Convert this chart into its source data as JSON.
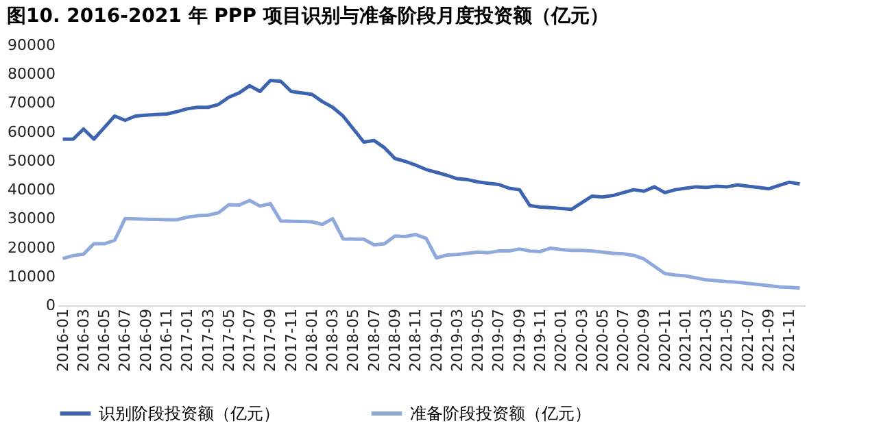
{
  "chart_data": {
    "type": "line",
    "title": "图10. 2016-2021 年 PPP 项目识别与准备阶段月度投资额（亿元）",
    "categories": [
      "2016-01",
      null,
      "2016-03",
      null,
      "2016-05",
      null,
      "2016-07",
      null,
      "2016-09",
      null,
      "2016-11",
      null,
      "2017-01",
      null,
      "2017-03",
      null,
      "2017-05",
      null,
      "2017-07",
      null,
      "2017-09",
      null,
      "2017-11",
      null,
      "2018-01",
      null,
      "2018-03",
      null,
      "2018-05",
      null,
      "2018-07",
      null,
      "2018-09",
      null,
      "2018-11",
      null,
      "2019-01",
      null,
      "2019-03",
      null,
      "2019-05",
      null,
      "2019-07",
      null,
      "2019-09",
      null,
      "2019-11",
      null,
      "2020-01",
      null,
      "2020-03",
      null,
      "2020-05",
      null,
      "2020-07",
      null,
      "2020-09",
      null,
      "2020-11",
      null,
      "2021-01",
      null,
      "2021-03",
      null,
      "2021-05",
      null,
      "2021-07",
      null,
      "2021-09",
      null,
      "2021-11",
      null
    ],
    "series": [
      {
        "name": "识别阶段投资额（亿元）",
        "color": "#3c64b1",
        "values": [
          57500,
          57500,
          61000,
          57500,
          61500,
          65500,
          64000,
          65500,
          65800,
          66000,
          66200,
          67000,
          68000,
          68500,
          68500,
          69500,
          72000,
          73500,
          76000,
          74000,
          77800,
          77500,
          74000,
          73500,
          73000,
          70500,
          68500,
          65500,
          61000,
          56500,
          57000,
          54500,
          50800,
          49800,
          48500,
          47000,
          46000,
          45000,
          43800,
          43500,
          42700,
          42200,
          41800,
          40500,
          40000,
          34500,
          34000,
          33800,
          33500,
          33200,
          35500,
          37800,
          37500,
          38000,
          39000,
          40000,
          39500,
          41000,
          39000,
          40000,
          40500,
          41000,
          40800,
          41200,
          41000,
          41700,
          41200,
          40800,
          40300,
          41500,
          42600,
          42000
        ]
      },
      {
        "name": "准备阶段投资额（亿元）",
        "color": "#8fa9dc",
        "values": [
          16200,
          17200,
          17700,
          21300,
          21300,
          22500,
          30000,
          29900,
          29800,
          29700,
          29600,
          29600,
          30500,
          31000,
          31200,
          32000,
          34800,
          34700,
          36300,
          34300,
          35200,
          29200,
          29100,
          29000,
          28900,
          28000,
          30000,
          23000,
          22900,
          22900,
          20900,
          21300,
          24000,
          23800,
          24500,
          23200,
          16400,
          17400,
          17600,
          18000,
          18400,
          18200,
          18800,
          18800,
          19500,
          18800,
          18600,
          19800,
          19300,
          19000,
          19000,
          18800,
          18400,
          18000,
          17800,
          17300,
          16000,
          13500,
          11000,
          10500,
          10200,
          9500,
          8800,
          8500,
          8200,
          8000,
          7600,
          7200,
          6800,
          6400,
          6200,
          6000
        ]
      }
    ],
    "ylim": [
      0,
      90000
    ],
    "yticks": [
      0,
      10000,
      20000,
      30000,
      40000,
      50000,
      60000,
      70000,
      80000,
      90000
    ],
    "grid": false,
    "legend": "bottom",
    "marker": "none",
    "line_style": "solid"
  }
}
